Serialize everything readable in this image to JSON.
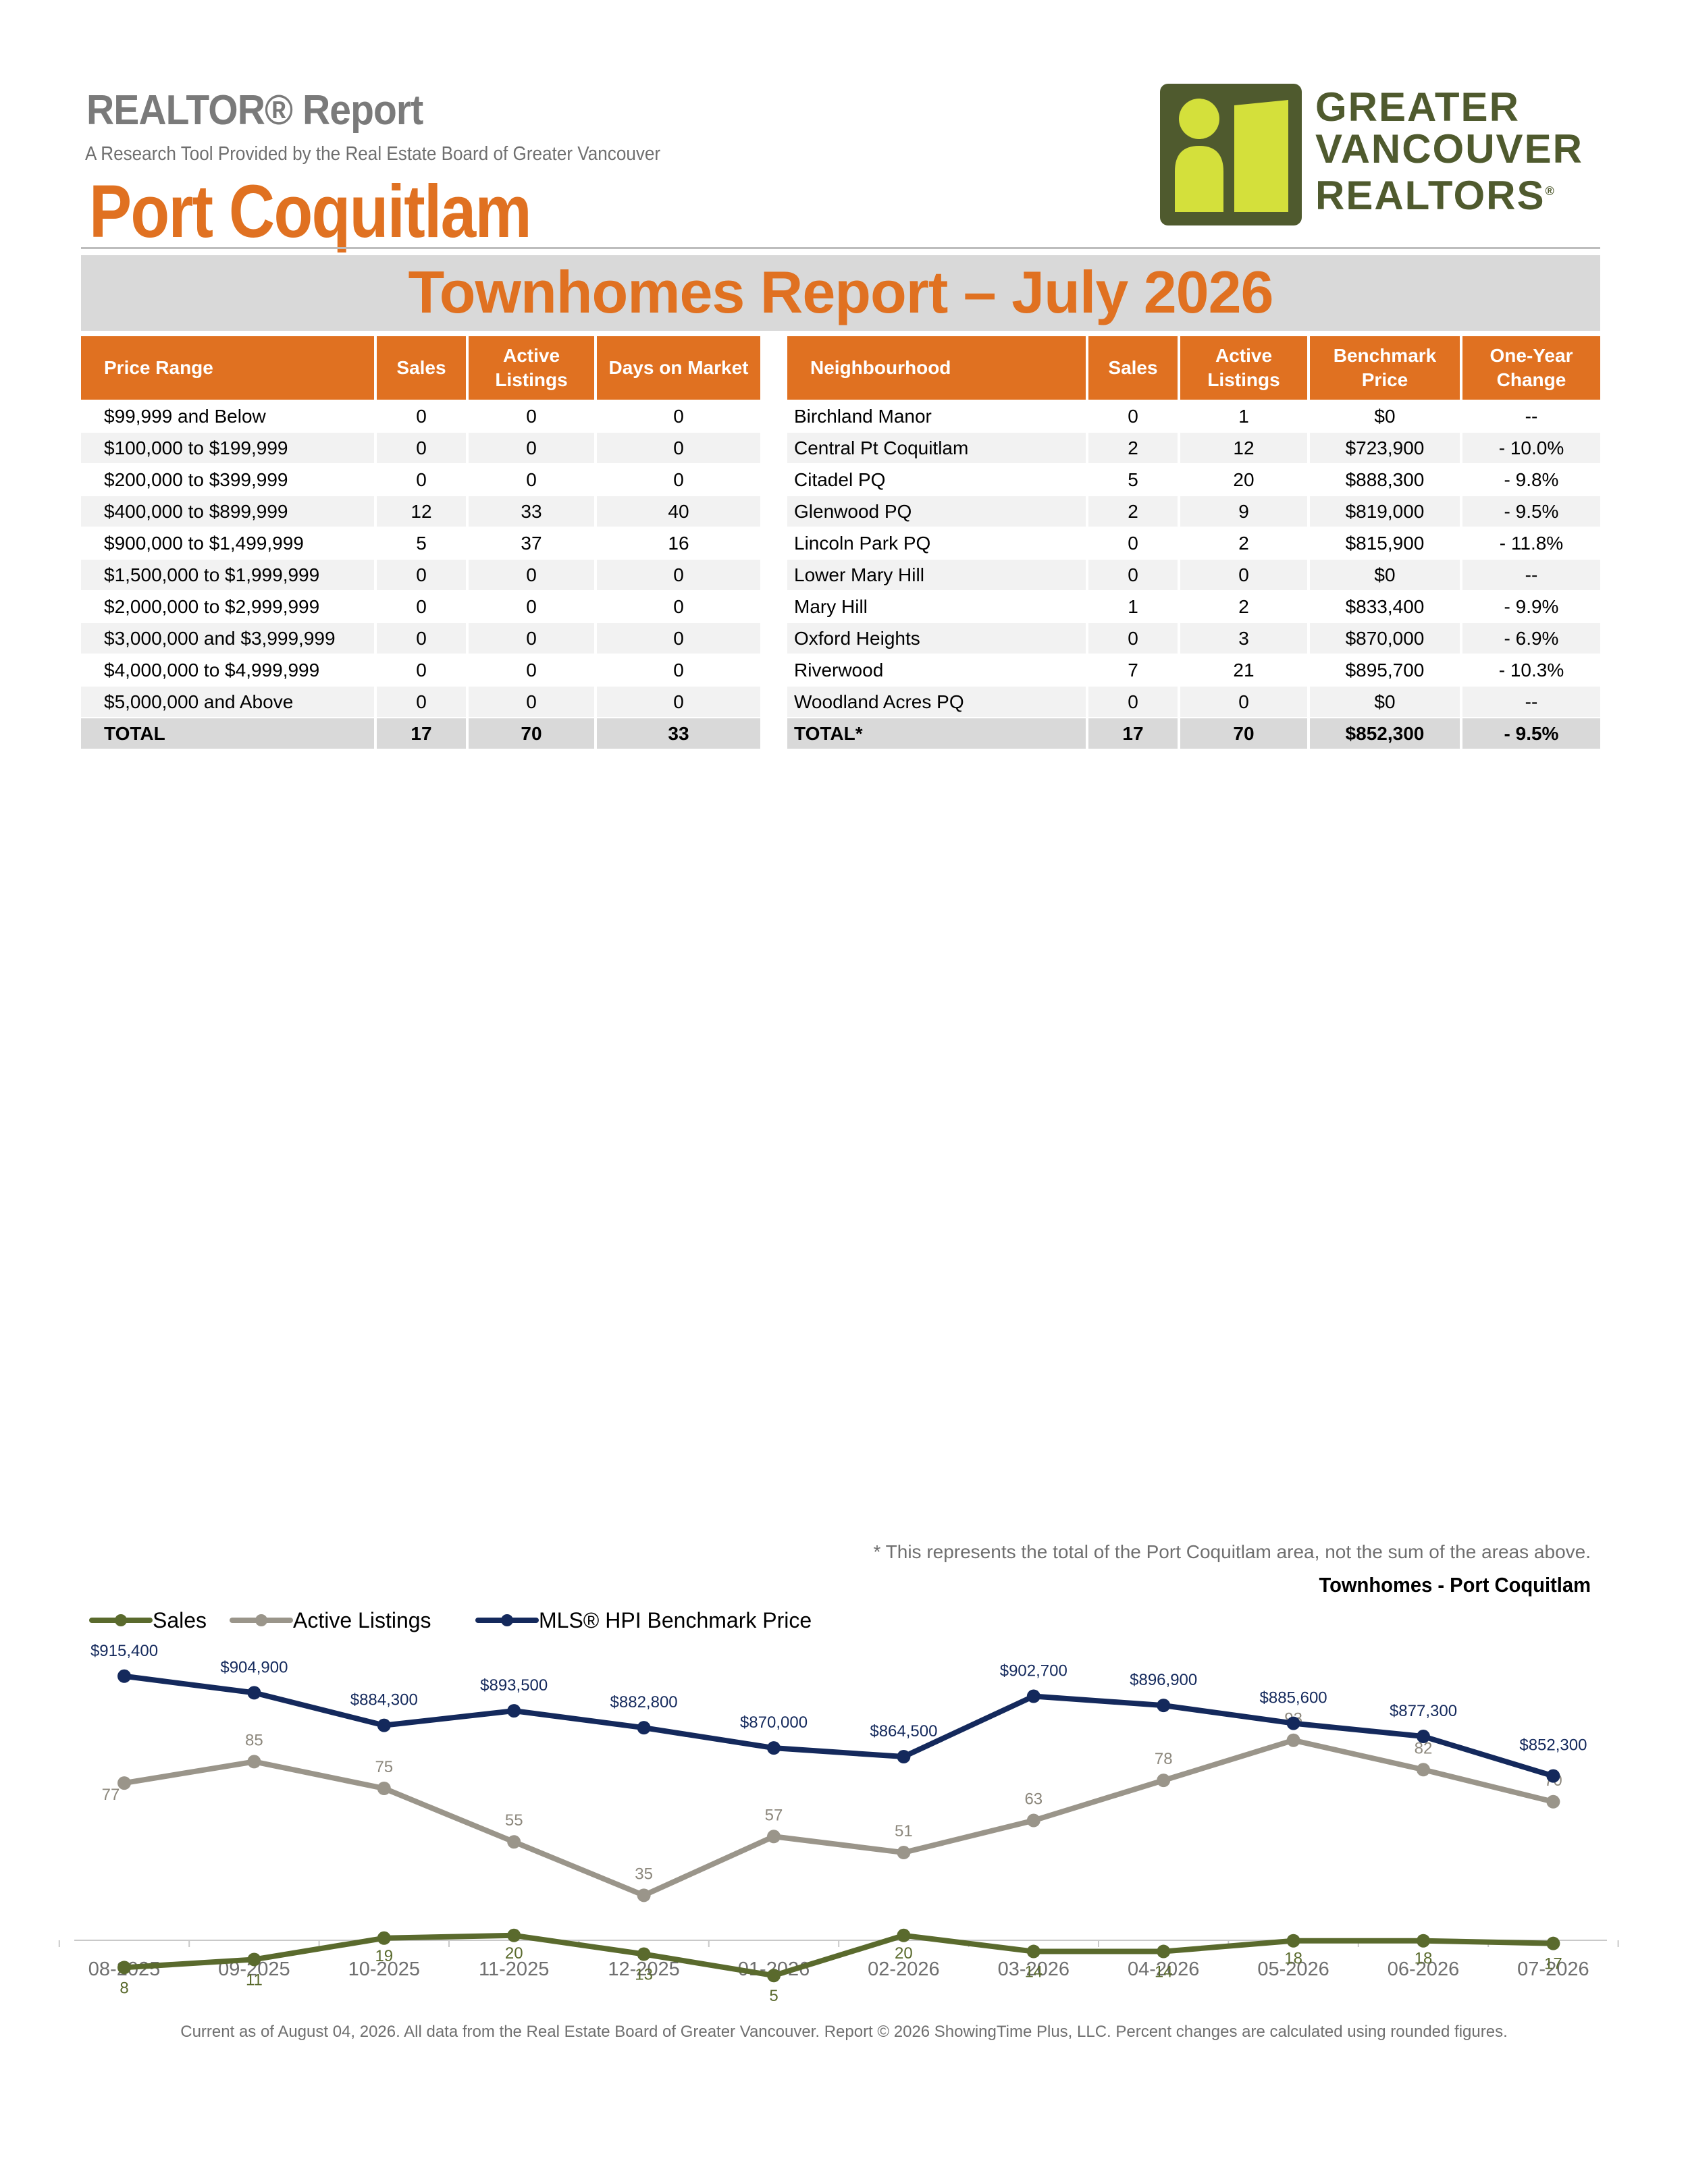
{
  "header": {
    "report_label": "REALTOR® Report",
    "subtitle": "A Research Tool Provided by the Real Estate Board of Greater Vancouver",
    "area_title": "Port Coquitlam",
    "logo_text": [
      "GREATER",
      "VANCOUVER",
      "REALTORS"
    ],
    "logo_colors": {
      "dark": "#4f5a2e",
      "light": "#d4e03b"
    }
  },
  "report_title": "Townhomes Report – July 2026",
  "price_table": {
    "headers": [
      "Price Range",
      "Sales",
      "Active Listings",
      "Days on Market"
    ],
    "rows": [
      [
        "$99,999 and Below",
        "0",
        "0",
        "0"
      ],
      [
        "$100,000 to $199,999",
        "0",
        "0",
        "0"
      ],
      [
        "$200,000 to $399,999",
        "0",
        "0",
        "0"
      ],
      [
        "$400,000 to $899,999",
        "12",
        "33",
        "40"
      ],
      [
        "$900,000 to $1,499,999",
        "5",
        "37",
        "16"
      ],
      [
        "$1,500,000 to $1,999,999",
        "0",
        "0",
        "0"
      ],
      [
        "$2,000,000 to $2,999,999",
        "0",
        "0",
        "0"
      ],
      [
        "$3,000,000 and $3,999,999",
        "0",
        "0",
        "0"
      ],
      [
        "$4,000,000 to $4,999,999",
        "0",
        "0",
        "0"
      ],
      [
        "$5,000,000 and Above",
        "0",
        "0",
        "0"
      ]
    ],
    "total": [
      "TOTAL",
      "17",
      "70",
      "33"
    ]
  },
  "neighbourhood_table": {
    "headers": [
      "Neighbourhood",
      "Sales",
      "Active Listings",
      "Benchmark Price",
      "One-Year Change"
    ],
    "rows": [
      [
        "Birchland Manor",
        "0",
        "1",
        "$0",
        "--"
      ],
      [
        "Central Pt Coquitlam",
        "2",
        "12",
        "$723,900",
        "- 10.0%"
      ],
      [
        "Citadel PQ",
        "5",
        "20",
        "$888,300",
        "- 9.8%"
      ],
      [
        "Glenwood PQ",
        "2",
        "9",
        "$819,000",
        "- 9.5%"
      ],
      [
        "Lincoln Park PQ",
        "0",
        "2",
        "$815,900",
        "- 11.8%"
      ],
      [
        "Lower Mary Hill",
        "0",
        "0",
        "$0",
        "--"
      ],
      [
        "Mary Hill",
        "1",
        "2",
        "$833,400",
        "- 9.9%"
      ],
      [
        "Oxford Heights",
        "0",
        "3",
        "$870,000",
        "- 6.9%"
      ],
      [
        "Riverwood",
        "7",
        "21",
        "$895,700",
        "- 10.3%"
      ],
      [
        "Woodland Acres PQ",
        "0",
        "0",
        "$0",
        "--"
      ]
    ],
    "total": [
      "TOTAL*",
      "17",
      "70",
      "$852,300",
      "- 9.5%"
    ]
  },
  "footnote": "* This represents the total of the Port Coquitlam area, not the sum of the areas above.",
  "chart_caption": "Townhomes - Port Coquitlam",
  "chart_data": {
    "type": "line",
    "categories": [
      "08-2025",
      "09-2025",
      "10-2025",
      "11-2025",
      "12-2025",
      "01-2026",
      "02-2026",
      "03-2026",
      "04-2026",
      "05-2026",
      "06-2026",
      "07-2026"
    ],
    "legend_position": "top-left",
    "series": [
      {
        "name": "Sales",
        "color": "#5a6a2d",
        "values": [
          8,
          11,
          19,
          20,
          13,
          5,
          20,
          14,
          14,
          18,
          18,
          17
        ],
        "labels": [
          "8",
          "11",
          "19",
          "20",
          "13",
          "5",
          "20",
          "14",
          "14",
          "18",
          "18",
          "17"
        ]
      },
      {
        "name": "Active Listings",
        "color": "#9a958a",
        "values": [
          77,
          85,
          75,
          55,
          35,
          57,
          51,
          63,
          78,
          93,
          82,
          70
        ],
        "labels": [
          "77",
          "85",
          "75",
          "55",
          "35",
          "57",
          "51",
          "63",
          "78",
          "93",
          "82",
          "70"
        ]
      },
      {
        "name": "MLS® HPI Benchmark Price",
        "color": "#14295c",
        "values": [
          915400,
          904900,
          884300,
          893500,
          882800,
          870000,
          864500,
          902700,
          896900,
          885600,
          877300,
          852300
        ],
        "labels": [
          "$915,400",
          "$904,900",
          "$884,300",
          "$893,500",
          "$882,800",
          "$870,000",
          "$864,500",
          "$902,700",
          "$896,900",
          "$885,600",
          "$877,300",
          "$852,300"
        ]
      }
    ]
  },
  "footer": "Current as of August 04, 2026. All data from the Real Estate Board of Greater Vancouver.  Report © 2026 ShowingTime Plus, LLC. Percent changes are calculated using rounded figures."
}
